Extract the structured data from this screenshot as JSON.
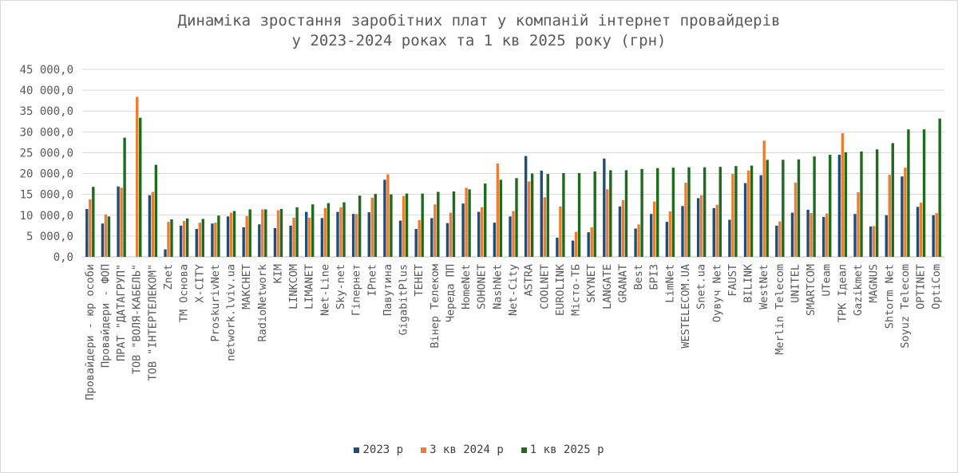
{
  "chart_data": {
    "type": "bar",
    "title_line1": "Динаміка зростання заробітних плат у компаній інтернет провайдерів",
    "title_line2": "у 2023-2024 роках та 1 кв 2025 року (грн)",
    "ylim": [
      0,
      45000
    ],
    "ytick_labels": [
      "0,0",
      "5 000,0",
      "10 000,0",
      "15 000,0",
      "20 000,0",
      "25 000,0",
      "30 000,0",
      "35 000,0",
      "40 000,0",
      "45 000,0"
    ],
    "grid": true,
    "legend_position": "bottom",
    "categories": [
      "Провайдери - юр особи",
      "Провайдери - ФОП",
      "ПРАТ \"ДАТАГРУП\"",
      "ТОВ \"ВОЛЯ-КАБЕЛЬ\"",
      "ТОВ \"ІНТЕРТЕЛЕКОМ\"",
      "Znet",
      "ТМ Основа",
      "X-CITY",
      "ProskurivNet",
      "network.lviv.ua",
      "МАКСНЕТ",
      "RadioNetwork",
      "КІМ",
      "LINKCOM",
      "LIMANET",
      "Net-Line",
      "Sky-net",
      "Гіпернет",
      "IPnet",
      "Павутина",
      "GigabitPlus",
      "ТЕНЕТ",
      "Вінер Телеком",
      "Череда ПП",
      "HomeNet",
      "SOHONET",
      "NashNet",
      "Net-City",
      "ASTRA",
      "COOLNET",
      "EUROLINK",
      "Місто-ТБ",
      "SKYNET",
      "LANGATE",
      "GRANAT",
      "Best",
      "БРІЗ",
      "LimNet",
      "WESTELECOM.UA",
      "Snet.ua",
      "Оувуч Net",
      "FAUST",
      "BILINK",
      "WestNet",
      "Merlin Telecom",
      "UNITEL",
      "SMARTCOM",
      "UTeam",
      "ТРК Ідеал",
      "Gazikmet",
      "MAGNUS",
      "Shtorm Net",
      "Soyuz Telecom",
      "OPTINET",
      "OptiCom"
    ],
    "series": [
      {
        "name": "2023 р",
        "color": "#1f4e79",
        "values": [
          11500,
          8000,
          16900,
          0,
          14800,
          1800,
          7500,
          6700,
          8000,
          9700,
          7100,
          7800,
          6900,
          7500,
          10800,
          9300,
          10800,
          10300,
          10700,
          18500,
          8700,
          6700,
          9300,
          8100,
          12800,
          10800,
          8200,
          9700,
          24200,
          20700,
          4600,
          3900,
          5900,
          23600,
          12100,
          6800,
          10300,
          8400,
          12200,
          14100,
          11700,
          8900,
          17700,
          19600,
          7500,
          10600,
          11300,
          9600,
          24500,
          10300,
          7300,
          10000,
          19300,
          12000,
          10000
        ]
      },
      {
        "name": "3 кв 2024 р",
        "color": "#ed7d31",
        "values": [
          13800,
          10200,
          16600,
          38400,
          15600,
          8400,
          8600,
          8200,
          8200,
          10600,
          9800,
          11400,
          11200,
          9400,
          9400,
          11700,
          11900,
          10300,
          14200,
          19800,
          14600,
          8800,
          12600,
          10600,
          16600,
          11900,
          22400,
          11000,
          18100,
          14300,
          12100,
          6000,
          7100,
          16200,
          13600,
          7800,
          13300,
          10900,
          17800,
          14800,
          12500,
          19900,
          20700,
          27900,
          8500,
          17800,
          10500,
          10400,
          29700,
          15500,
          7400,
          19700,
          21400,
          13000,
          10500
        ]
      },
      {
        "name": "1 кв 2025 р",
        "color": "#1e6b1e",
        "values": [
          16800,
          9700,
          28600,
          33400,
          22100,
          9000,
          9200,
          9100,
          9900,
          11000,
          11400,
          11400,
          11500,
          11900,
          12600,
          12900,
          13100,
          14700,
          15100,
          15000,
          15200,
          15200,
          15600,
          15700,
          16200,
          17600,
          18500,
          18900,
          20000,
          19900,
          20100,
          20100,
          20500,
          20800,
          20800,
          21100,
          21300,
          21400,
          21500,
          21500,
          21600,
          21800,
          21900,
          23300,
          23300,
          23400,
          24100,
          24500,
          25100,
          25300,
          25800,
          27300,
          30600,
          30600,
          33200
        ]
      }
    ]
  }
}
